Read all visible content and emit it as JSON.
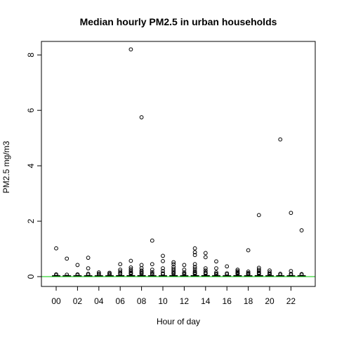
{
  "chart_data": {
    "type": "boxplot",
    "title": "Median hourly PM2.5 in urban households",
    "xlabel": "Hour of day",
    "ylabel": "PM2.5 mg/m3",
    "categories": [
      "00",
      "01",
      "02",
      "03",
      "04",
      "05",
      "06",
      "07",
      "08",
      "09",
      "10",
      "11",
      "12",
      "13",
      "14",
      "15",
      "16",
      "17",
      "18",
      "19",
      "20",
      "21",
      "22",
      "23"
    ],
    "x_tick_labels": [
      "00",
      "02",
      "04",
      "06",
      "08",
      "10",
      "12",
      "14",
      "16",
      "18",
      "20",
      "22"
    ],
    "y_ticks": [
      0,
      2,
      4,
      6,
      8
    ],
    "ylim": [
      -0.15,
      8.4
    ],
    "reference_line": {
      "y": 0,
      "color": "#00c800"
    },
    "boxes": [
      {
        "hour": "00",
        "stats": [
          0,
          0.01,
          0.02,
          0.03,
          0.05
        ],
        "outliers": [
          1.02,
          0.08,
          0.06
        ]
      },
      {
        "hour": "01",
        "stats": [
          0,
          0.01,
          0.02,
          0.03,
          0.05
        ],
        "outliers": [
          0.65,
          0.07
        ]
      },
      {
        "hour": "02",
        "stats": [
          0,
          0.01,
          0.02,
          0.03,
          0.05
        ],
        "outliers": [
          0.42,
          0.08,
          0.06
        ]
      },
      {
        "hour": "03",
        "stats": [
          0,
          0.01,
          0.02,
          0.03,
          0.05
        ],
        "outliers": [
          0.68,
          0.3,
          0.1,
          0.07
        ]
      },
      {
        "hour": "04",
        "stats": [
          0,
          0.01,
          0.02,
          0.03,
          0.05
        ],
        "outliers": [
          0.15,
          0.1,
          0.07
        ]
      },
      {
        "hour": "05",
        "stats": [
          0,
          0.01,
          0.02,
          0.03,
          0.05
        ],
        "outliers": [
          0.14,
          0.1,
          0.07
        ]
      },
      {
        "hour": "06",
        "stats": [
          0,
          0.01,
          0.02,
          0.04,
          0.07
        ],
        "outliers": [
          0.45,
          0.25,
          0.18,
          0.12,
          0.1
        ]
      },
      {
        "hour": "07",
        "stats": [
          0,
          0.01,
          0.02,
          0.04,
          0.08
        ],
        "outliers": [
          8.2,
          0.57,
          0.33,
          0.26,
          0.2,
          0.15,
          0.12,
          0.1
        ]
      },
      {
        "hour": "08",
        "stats": [
          0,
          0.01,
          0.02,
          0.04,
          0.08
        ],
        "outliers": [
          5.75,
          0.42,
          0.3,
          0.22,
          0.17,
          0.13,
          0.1
        ]
      },
      {
        "hour": "09",
        "stats": [
          0,
          0.01,
          0.02,
          0.03,
          0.06
        ],
        "outliers": [
          1.3,
          0.45,
          0.25,
          0.16,
          0.1,
          0.08
        ]
      },
      {
        "hour": "10",
        "stats": [
          0,
          0.01,
          0.02,
          0.03,
          0.06
        ],
        "outliers": [
          0.75,
          0.56,
          0.3,
          0.2,
          0.12,
          0.09
        ]
      },
      {
        "hour": "11",
        "stats": [
          0,
          0.01,
          0.02,
          0.04,
          0.08
        ],
        "outliers": [
          0.52,
          0.45,
          0.35,
          0.28,
          0.22,
          0.17,
          0.13,
          0.1
        ]
      },
      {
        "hour": "12",
        "stats": [
          0,
          0.01,
          0.02,
          0.03,
          0.06
        ],
        "outliers": [
          0.42,
          0.25,
          0.15,
          0.1,
          0.08
        ]
      },
      {
        "hour": "13",
        "stats": [
          0,
          0.01,
          0.02,
          0.04,
          0.08
        ],
        "outliers": [
          1.02,
          0.88,
          0.78,
          0.45,
          0.35,
          0.28,
          0.2,
          0.15,
          0.12,
          0.1
        ]
      },
      {
        "hour": "14",
        "stats": [
          0,
          0.01,
          0.02,
          0.04,
          0.08
        ],
        "outliers": [
          0.85,
          0.7,
          0.3,
          0.22,
          0.15,
          0.12,
          0.1
        ]
      },
      {
        "hour": "15",
        "stats": [
          0,
          0.01,
          0.02,
          0.03,
          0.06
        ],
        "outliers": [
          0.55,
          0.3,
          0.15,
          0.1,
          0.08
        ]
      },
      {
        "hour": "16",
        "stats": [
          0,
          0.01,
          0.02,
          0.03,
          0.06
        ],
        "outliers": [
          0.37,
          0.12,
          0.08
        ]
      },
      {
        "hour": "17",
        "stats": [
          0,
          0.01,
          0.02,
          0.04,
          0.08
        ],
        "outliers": [
          0.25,
          0.2,
          0.16,
          0.12,
          0.1
        ]
      },
      {
        "hour": "18",
        "stats": [
          0,
          0.01,
          0.02,
          0.03,
          0.06
        ],
        "outliers": [
          0.95,
          0.18,
          0.13,
          0.1,
          0.08
        ]
      },
      {
        "hour": "19",
        "stats": [
          0,
          0.01,
          0.02,
          0.04,
          0.08
        ],
        "outliers": [
          2.22,
          0.32,
          0.25,
          0.2,
          0.15,
          0.12,
          0.1
        ]
      },
      {
        "hour": "20",
        "stats": [
          0,
          0.01,
          0.02,
          0.03,
          0.06
        ],
        "outliers": [
          0.22,
          0.15,
          0.1,
          0.08
        ]
      },
      {
        "hour": "21",
        "stats": [
          0,
          0.01,
          0.02,
          0.03,
          0.05
        ],
        "outliers": [
          4.95,
          0.1,
          0.07
        ]
      },
      {
        "hour": "22",
        "stats": [
          0,
          0.01,
          0.02,
          0.03,
          0.05
        ],
        "outliers": [
          2.3,
          0.2,
          0.1,
          0.07
        ]
      },
      {
        "hour": "23",
        "stats": [
          0,
          0.01,
          0.02,
          0.03,
          0.05
        ],
        "outliers": [
          1.67,
          0.09,
          0.07
        ]
      }
    ]
  }
}
